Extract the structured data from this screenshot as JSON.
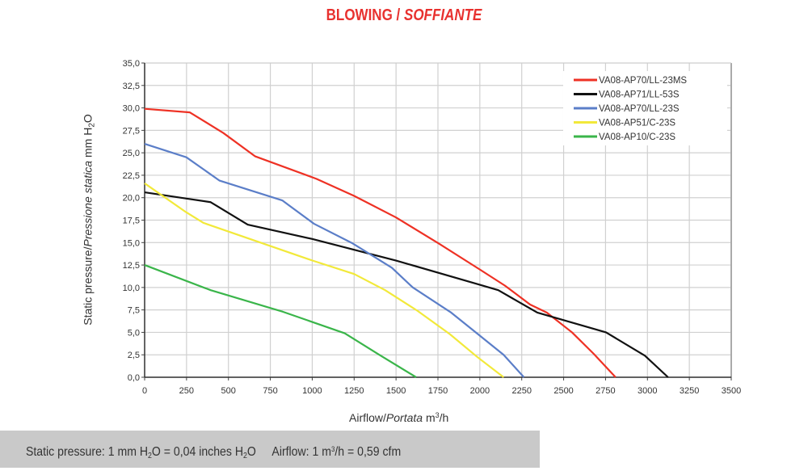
{
  "chart_data": {
    "type": "line",
    "title_main": "BLOWING / ",
    "title_italic": "SOFFIANTE",
    "xlabel": {
      "en": "Airflow",
      "sep": "/",
      "it": "Portata",
      "unit_pre": "m",
      "unit_sup": "3",
      "unit_post": "/h"
    },
    "ylabel": {
      "en": "Static pressure",
      "sep": "/",
      "it": "Pressione statica",
      "unit_pre": "mm  H",
      "unit_sub": "2",
      "unit_post": "O"
    },
    "xlim": [
      0,
      3500
    ],
    "ylim": [
      0,
      35
    ],
    "xticks": [
      "0",
      "250",
      "500",
      "750",
      "1000",
      "1250",
      "1500",
      "1750",
      "2000",
      "2250",
      "2500",
      "2750",
      "3000",
      "3250",
      "3500"
    ],
    "yticks": [
      "0,0",
      "2,5",
      "5,0",
      "7,5",
      "10,0",
      "12,5",
      "15,0",
      "17,5",
      "20,0",
      "22,5",
      "25,0",
      "27,5",
      "30,0",
      "32,5",
      "35,0"
    ],
    "grid": true,
    "legend_position": "top-right",
    "series": [
      {
        "name": "VA08-AP70/LL-23MS",
        "color": "#ee3124",
        "points": [
          [
            0,
            29.9
          ],
          [
            270,
            29.5
          ],
          [
            470,
            27.2
          ],
          [
            660,
            24.6
          ],
          [
            1025,
            22.1
          ],
          [
            1250,
            20.2
          ],
          [
            1500,
            17.8
          ],
          [
            1755,
            14.9
          ],
          [
            2000,
            12.0
          ],
          [
            2150,
            10.2
          ],
          [
            2300,
            8.1
          ],
          [
            2400,
            7.2
          ],
          [
            2550,
            5.0
          ],
          [
            2680,
            2.6
          ],
          [
            2810,
            0
          ]
        ]
      },
      {
        "name": "VA08-AP71/LL-53S",
        "color": "#111111",
        "points": [
          [
            0,
            20.6
          ],
          [
            250,
            19.9
          ],
          [
            394,
            19.5
          ],
          [
            615,
            17.0
          ],
          [
            1000,
            15.4
          ],
          [
            1500,
            13.0
          ],
          [
            1982,
            10.4
          ],
          [
            2110,
            9.7
          ],
          [
            2343,
            7.2
          ],
          [
            2753,
            5.0
          ],
          [
            2985,
            2.4
          ],
          [
            3123,
            0
          ]
        ]
      },
      {
        "name": "VA08-AP70/LL-23S",
        "color": "#5b7ec8",
        "points": [
          [
            0,
            26.0
          ],
          [
            249,
            24.5
          ],
          [
            447,
            21.9
          ],
          [
            821,
            19.7
          ],
          [
            1010,
            17.1
          ],
          [
            1242,
            14.9
          ],
          [
            1475,
            12.2
          ],
          [
            1600,
            10.0
          ],
          [
            1829,
            7.2
          ],
          [
            1982,
            4.9
          ],
          [
            2142,
            2.5
          ],
          [
            2263,
            0
          ]
        ]
      },
      {
        "name": "VA08-AP51/C-23S",
        "color": "#f2e93a",
        "points": [
          [
            0,
            21.6
          ],
          [
            246,
            18.4
          ],
          [
            350,
            17.2
          ],
          [
            1001,
            13.0
          ],
          [
            1250,
            11.5
          ],
          [
            1435,
            9.7
          ],
          [
            1628,
            7.4
          ],
          [
            1821,
            4.8
          ],
          [
            1982,
            2.3
          ],
          [
            2142,
            0
          ]
        ]
      },
      {
        "name": "VA08-AP10/C-23S",
        "color": "#3ab54a",
        "points": [
          [
            0,
            12.5
          ],
          [
            394,
            9.7
          ],
          [
            824,
            7.3
          ],
          [
            1194,
            4.9
          ],
          [
            1400,
            2.5
          ],
          [
            1620,
            0
          ]
        ]
      }
    ]
  },
  "footer": {
    "pressure_label": "Static pressure: 1 mm H",
    "pressure_sub": "2",
    "pressure_mid": "O = 0,04 inches H",
    "pressure_sub2": "2",
    "pressure_end": "O",
    "airflow_label": "Airflow: 1 m",
    "airflow_sup": "3",
    "airflow_end": "/h = 0,59 cfm"
  }
}
